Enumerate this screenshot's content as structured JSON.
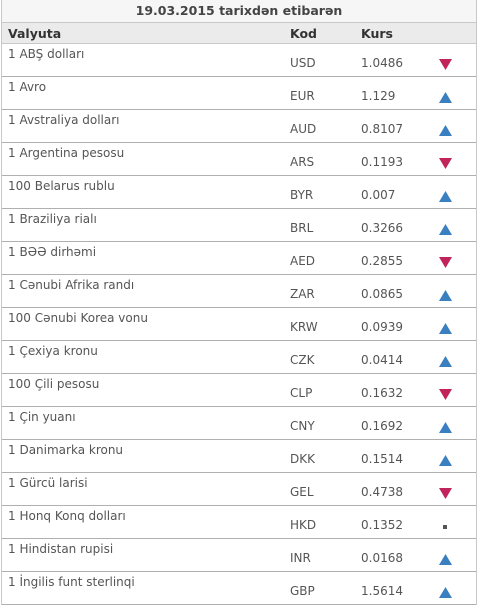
{
  "title": "19.03.2015 tarixdən etibarən",
  "columns": {
    "currency": "Valyuta",
    "code": "Kod",
    "rate": "Kurs"
  },
  "colors": {
    "up": "#3a7fc0",
    "down": "#c0245a",
    "flat": "#555555"
  },
  "rows": [
    {
      "name": "1 ABŞ dolları",
      "code": "USD",
      "rate": "1.0486",
      "trend": "down"
    },
    {
      "name": "1 Avro",
      "code": "EUR",
      "rate": "1.129",
      "trend": "up"
    },
    {
      "name": "1 Avstraliya dolları",
      "code": "AUD",
      "rate": "0.8107",
      "trend": "up"
    },
    {
      "name": "1 Argentina pesosu",
      "code": "ARS",
      "rate": "0.1193",
      "trend": "down"
    },
    {
      "name": "100 Belarus rublu",
      "code": "BYR",
      "rate": "0.007",
      "trend": "up"
    },
    {
      "name": "1 Braziliya rialı",
      "code": "BRL",
      "rate": "0.3266",
      "trend": "up"
    },
    {
      "name": "1 BƏƏ dirhəmi",
      "code": "AED",
      "rate": "0.2855",
      "trend": "down"
    },
    {
      "name": "1 Cənubi Afrika randı",
      "code": "ZAR",
      "rate": "0.0865",
      "trend": "up"
    },
    {
      "name": "100 Cənubi Korea vonu",
      "code": "KRW",
      "rate": "0.0939",
      "trend": "up"
    },
    {
      "name": "1 Çexiya kronu",
      "code": "CZK",
      "rate": "0.0414",
      "trend": "up"
    },
    {
      "name": "100 Çili pesosu",
      "code": "CLP",
      "rate": "0.1632",
      "trend": "down"
    },
    {
      "name": "1 Çin yuanı",
      "code": "CNY",
      "rate": "0.1692",
      "trend": "up"
    },
    {
      "name": "1 Danimarka kronu",
      "code": "DKK",
      "rate": "0.1514",
      "trend": "up"
    },
    {
      "name": "1 Gürcü larisi",
      "code": "GEL",
      "rate": "0.4738",
      "trend": "down"
    },
    {
      "name": "1 Honq Konq dolları",
      "code": "HKD",
      "rate": "0.1352",
      "trend": "flat"
    },
    {
      "name": "1 Hindistan rupisi",
      "code": "INR",
      "rate": "0.0168",
      "trend": "up"
    },
    {
      "name": "1 İngilis funt sterlinqi",
      "code": "GBP",
      "rate": "1.5614",
      "trend": "up"
    }
  ]
}
